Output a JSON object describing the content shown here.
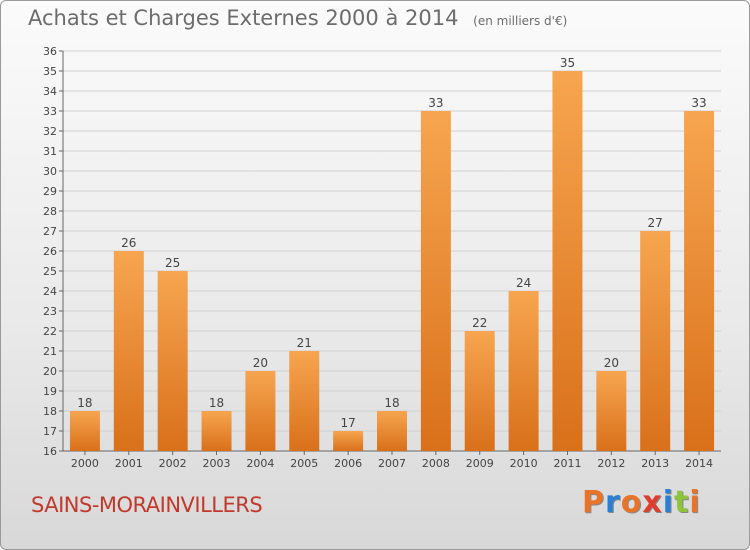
{
  "header": {
    "title": "Achats et Charges Externes 2000 à 2014",
    "unit": "(en milliers d'€)"
  },
  "footer": {
    "place": "SAINS-MORAINVILLERS",
    "brand": "Proxiti",
    "brand_colors": [
      "#e8742a",
      "#2a7fd4",
      "#e8742a",
      "#e03c2b",
      "#2a7fd4",
      "#8cc43c",
      "#e8742a"
    ]
  },
  "colors": {
    "bar_top": "#f7a550",
    "bar_bottom": "#d9701a",
    "grid": "#d0d0d0",
    "axis": "#666666",
    "label": "#444444"
  },
  "chart_data": {
    "type": "bar",
    "categories": [
      "2000",
      "2001",
      "2002",
      "2003",
      "2004",
      "2005",
      "2006",
      "2007",
      "2008",
      "2009",
      "2010",
      "2011",
      "2012",
      "2013",
      "2014"
    ],
    "values": [
      18,
      26,
      25,
      18,
      20,
      21,
      17,
      18,
      33,
      22,
      24,
      35,
      20,
      27,
      33
    ],
    "ylim": [
      16,
      36
    ],
    "yticks": [
      16,
      17,
      18,
      19,
      20,
      21,
      22,
      23,
      24,
      25,
      26,
      27,
      28,
      29,
      30,
      31,
      32,
      33,
      34,
      35,
      36
    ],
    "grid": true,
    "title": "Achats et Charges Externes 2000 à 2014",
    "xlabel": "",
    "ylabel": ""
  }
}
